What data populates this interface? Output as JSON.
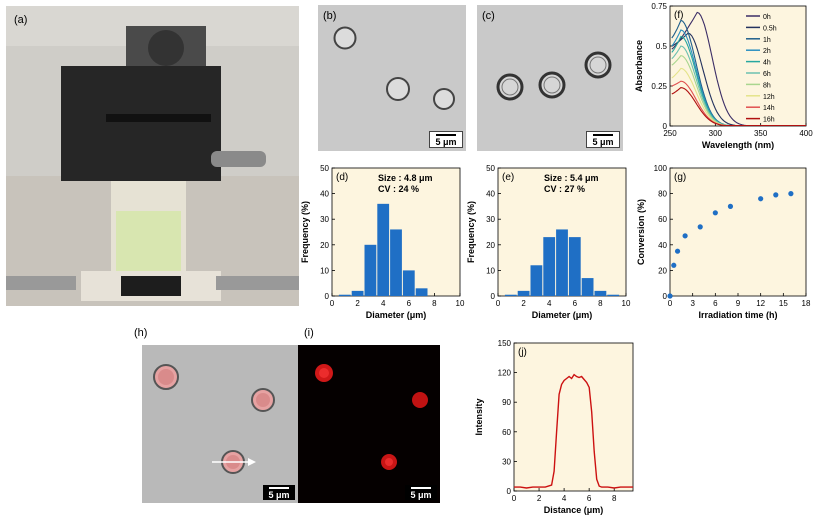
{
  "panels": {
    "a": {
      "label": "(a)"
    },
    "b": {
      "label": "(b)",
      "scale": "5 μm"
    },
    "c": {
      "label": "(c)",
      "scale": "5 μm"
    },
    "d": {
      "label": "(d)"
    },
    "e": {
      "label": "(e)"
    },
    "f": {
      "label": "(f)"
    },
    "g": {
      "label": "(g)"
    },
    "h": {
      "label": "(h)",
      "scale": "5 μm"
    },
    "i": {
      "label": "(i)",
      "scale": "5 μm"
    },
    "j": {
      "label": "(j)"
    }
  },
  "colors": {
    "plot_bg": "#fdf5df",
    "bar": "#1f6fc5",
    "marker": "#1f6fc5",
    "profile": "#cc1111"
  },
  "chart_data": [
    {
      "id": "d",
      "type": "bar",
      "annotation": [
        "Size : 4.8 μm",
        "CV : 24 %"
      ],
      "xlabel": "Diameter (μm)",
      "ylabel": "Frequency (%)",
      "xlim": [
        0,
        10
      ],
      "ylim": [
        0,
        50
      ],
      "xticks": [
        0,
        2,
        4,
        6,
        8,
        10
      ],
      "yticks": [
        0,
        10,
        20,
        30,
        40,
        50
      ],
      "bin_width": 1,
      "categories": [
        1,
        2,
        3,
        4,
        5,
        6,
        7
      ],
      "values": [
        0.5,
        2,
        20,
        36,
        26,
        10,
        3
      ]
    },
    {
      "id": "e",
      "type": "bar",
      "annotation": [
        "Size : 5.4 μm",
        "CV : 27 %"
      ],
      "xlabel": "Diameter (μm)",
      "ylabel": "Frequency (%)",
      "xlim": [
        0,
        10
      ],
      "ylim": [
        0,
        50
      ],
      "xticks": [
        0,
        2,
        4,
        6,
        8,
        10
      ],
      "yticks": [
        0,
        10,
        20,
        30,
        40,
        50
      ],
      "bin_width": 1,
      "categories": [
        1,
        2,
        3,
        4,
        5,
        6,
        7,
        8,
        9
      ],
      "values": [
        0.5,
        2,
        12,
        23,
        26,
        23,
        7,
        2,
        0.5
      ]
    },
    {
      "id": "f",
      "type": "line",
      "xlabel": "Wavelength (nm)",
      "ylabel": "Absorbance",
      "xlim": [
        250,
        400
      ],
      "ylim": [
        0,
        0.75
      ],
      "xticks": [
        250,
        300,
        350,
        400
      ],
      "yticks": [
        0,
        0.25,
        0.5,
        0.75
      ],
      "legend_position": "top-right",
      "series": [
        {
          "name": "0h",
          "color": "#3b2d66",
          "peak_nm": 280,
          "peak_abs": 0.71,
          "short_abs": 0.48
        },
        {
          "name": "0.5h",
          "color": "#24325e",
          "peak_nm": 270,
          "peak_abs": 0.58,
          "short_abs": 0.5
        },
        {
          "name": "1h",
          "color": "#1f5f8b",
          "peak_nm": 262,
          "peak_abs": 0.66,
          "short_abs": 0.55
        },
        {
          "name": "2h",
          "color": "#2a8fc0",
          "peak_nm": 262,
          "peak_abs": 0.6,
          "short_abs": 0.5
        },
        {
          "name": "4h",
          "color": "#27a7a0",
          "peak_nm": 262,
          "peak_abs": 0.56,
          "short_abs": 0.46
        },
        {
          "name": "6h",
          "color": "#6cc0b0",
          "peak_nm": 262,
          "peak_abs": 0.5,
          "short_abs": 0.42
        },
        {
          "name": "8h",
          "color": "#a9d68f",
          "peak_nm": 262,
          "peak_abs": 0.44,
          "short_abs": 0.38
        },
        {
          "name": "12h",
          "color": "#e4e38a",
          "peak_nm": 262,
          "peak_abs": 0.36,
          "short_abs": 0.3
        },
        {
          "name": "14h",
          "color": "#e05050",
          "peak_nm": 262,
          "peak_abs": 0.28,
          "short_abs": 0.25
        },
        {
          "name": "16h",
          "color": "#b01010",
          "peak_nm": 262,
          "peak_abs": 0.24,
          "short_abs": 0.2
        }
      ]
    },
    {
      "id": "g",
      "type": "scatter",
      "xlabel": "Irradiation time (h)",
      "ylabel": "Conversion (%)",
      "xlim": [
        0,
        18
      ],
      "ylim": [
        0,
        100
      ],
      "xticks": [
        0,
        3,
        6,
        9,
        12,
        15,
        18
      ],
      "yticks": [
        0,
        20,
        40,
        60,
        80,
        100
      ],
      "x": [
        0,
        0.5,
        1,
        2,
        4,
        6,
        8,
        12,
        14,
        16
      ],
      "y": [
        0,
        24,
        35,
        47,
        54,
        65,
        70,
        76,
        79,
        80
      ]
    },
    {
      "id": "j",
      "type": "line",
      "xlabel": "Distance (μm)",
      "ylabel": "Intensity",
      "xlim": [
        0,
        9.5
      ],
      "ylim": [
        0,
        150
      ],
      "xticks": [
        0,
        2,
        4,
        6,
        8
      ],
      "yticks": [
        0,
        30,
        60,
        90,
        120,
        150
      ],
      "x": [
        0,
        0.5,
        1,
        1.5,
        2,
        2.5,
        3,
        3.2,
        3.4,
        3.6,
        3.8,
        4,
        4.2,
        4.4,
        4.6,
        4.8,
        5,
        5.2,
        5.4,
        5.6,
        5.8,
        6,
        6.2,
        6.4,
        6.6,
        6.8,
        7,
        7.5,
        8,
        8.5,
        9,
        9.5
      ],
      "y": [
        4,
        4,
        3,
        4,
        4,
        4,
        6,
        20,
        60,
        98,
        108,
        112,
        114,
        116,
        114,
        118,
        116,
        115,
        116,
        113,
        110,
        105,
        80,
        40,
        12,
        5,
        4,
        4,
        3,
        4,
        4,
        4
      ]
    }
  ]
}
